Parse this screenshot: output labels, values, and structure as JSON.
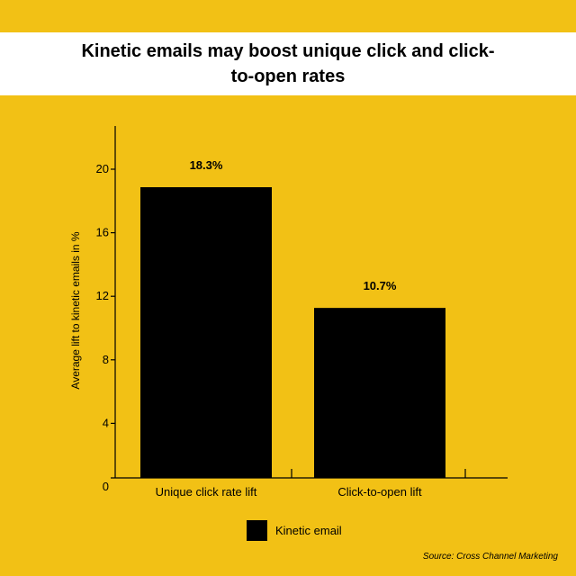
{
  "title": "Kinetic emails may boost unique click and click-to-open rates",
  "source": "Source: Cross Channel Marketing",
  "legend": {
    "label": "Kinetic email"
  },
  "colors": {
    "background": "#F2C115",
    "bar": "#000000",
    "title_band": "#FFFFFF"
  },
  "chart_data": {
    "type": "bar",
    "categories": [
      "Unique click rate lift",
      "Click-to-open lift"
    ],
    "series": [
      {
        "name": "Kinetic email",
        "values": [
          18.3,
          10.7
        ]
      }
    ],
    "data_labels": [
      "18.3%",
      "10.7%"
    ],
    "ylabel": "Average lift to kinetic emails in %",
    "xlabel": "",
    "ylim": [
      0,
      22
    ],
    "yticks": [
      0,
      4,
      8,
      12,
      16,
      20
    ],
    "legend_position": "bottom",
    "grid": false
  }
}
